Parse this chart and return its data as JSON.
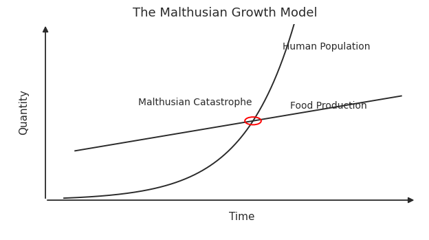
{
  "title": "The Malthusian Growth Model",
  "xlabel": "Time",
  "ylabel": "Quantity",
  "background_color": "#ffffff",
  "line_color": "#2a2a2a",
  "catastrophe_circle_color": "red",
  "label_human_pop": "Human Population",
  "label_food_prod": "Food Production",
  "label_catastrophe": "Malthusian Catastrophe",
  "title_fontsize": 13,
  "axis_label_fontsize": 11,
  "annotation_fontsize": 10,
  "figsize": [
    6.24,
    3.49
  ],
  "dpi": 100,
  "xlim": [
    0,
    10
  ],
  "ylim": [
    0,
    10
  ],
  "catastrophe_x": 5.6,
  "catastrophe_y": 4.5
}
